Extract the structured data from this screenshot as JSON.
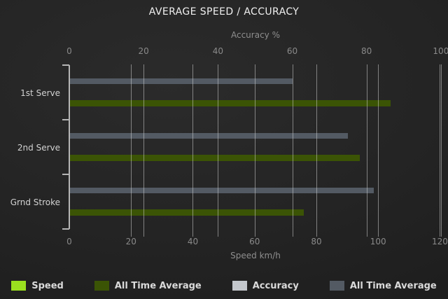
{
  "title": "AVERAGE SPEED / ACCURACY",
  "chart_data": {
    "type": "bar",
    "orientation": "horizontal",
    "grid": true,
    "legend_position": "bottom",
    "title": "AVERAGE SPEED / ACCURACY",
    "categories": [
      "1st Serve",
      "2nd Serve",
      "Grnd Stroke"
    ],
    "axes": {
      "top": {
        "label": "Accuracy %",
        "ticks": [
          0,
          20,
          40,
          60,
          80,
          100
        ],
        "range": [
          0,
          100.4
        ]
      },
      "bottom": {
        "label": "Speed km/h",
        "ticks": [
          0,
          20,
          40,
          60,
          80,
          100,
          120
        ],
        "range": [
          0,
          120.8
        ]
      }
    },
    "series": [
      {
        "name": "Speed",
        "axis": "bottom",
        "color": "#9ae01f",
        "values": [
          null,
          null,
          null
        ]
      },
      {
        "name": "All Time Average",
        "axis": "bottom",
        "color": "#3b5405",
        "values": [
          104,
          94,
          76
        ]
      },
      {
        "name": "Accuracy",
        "axis": "top",
        "color": "#c3c7cc",
        "values": [
          null,
          null,
          null
        ]
      },
      {
        "name": "All Time Average",
        "axis": "top",
        "color": "#535a63",
        "values": [
          60,
          75,
          82
        ]
      }
    ]
  }
}
